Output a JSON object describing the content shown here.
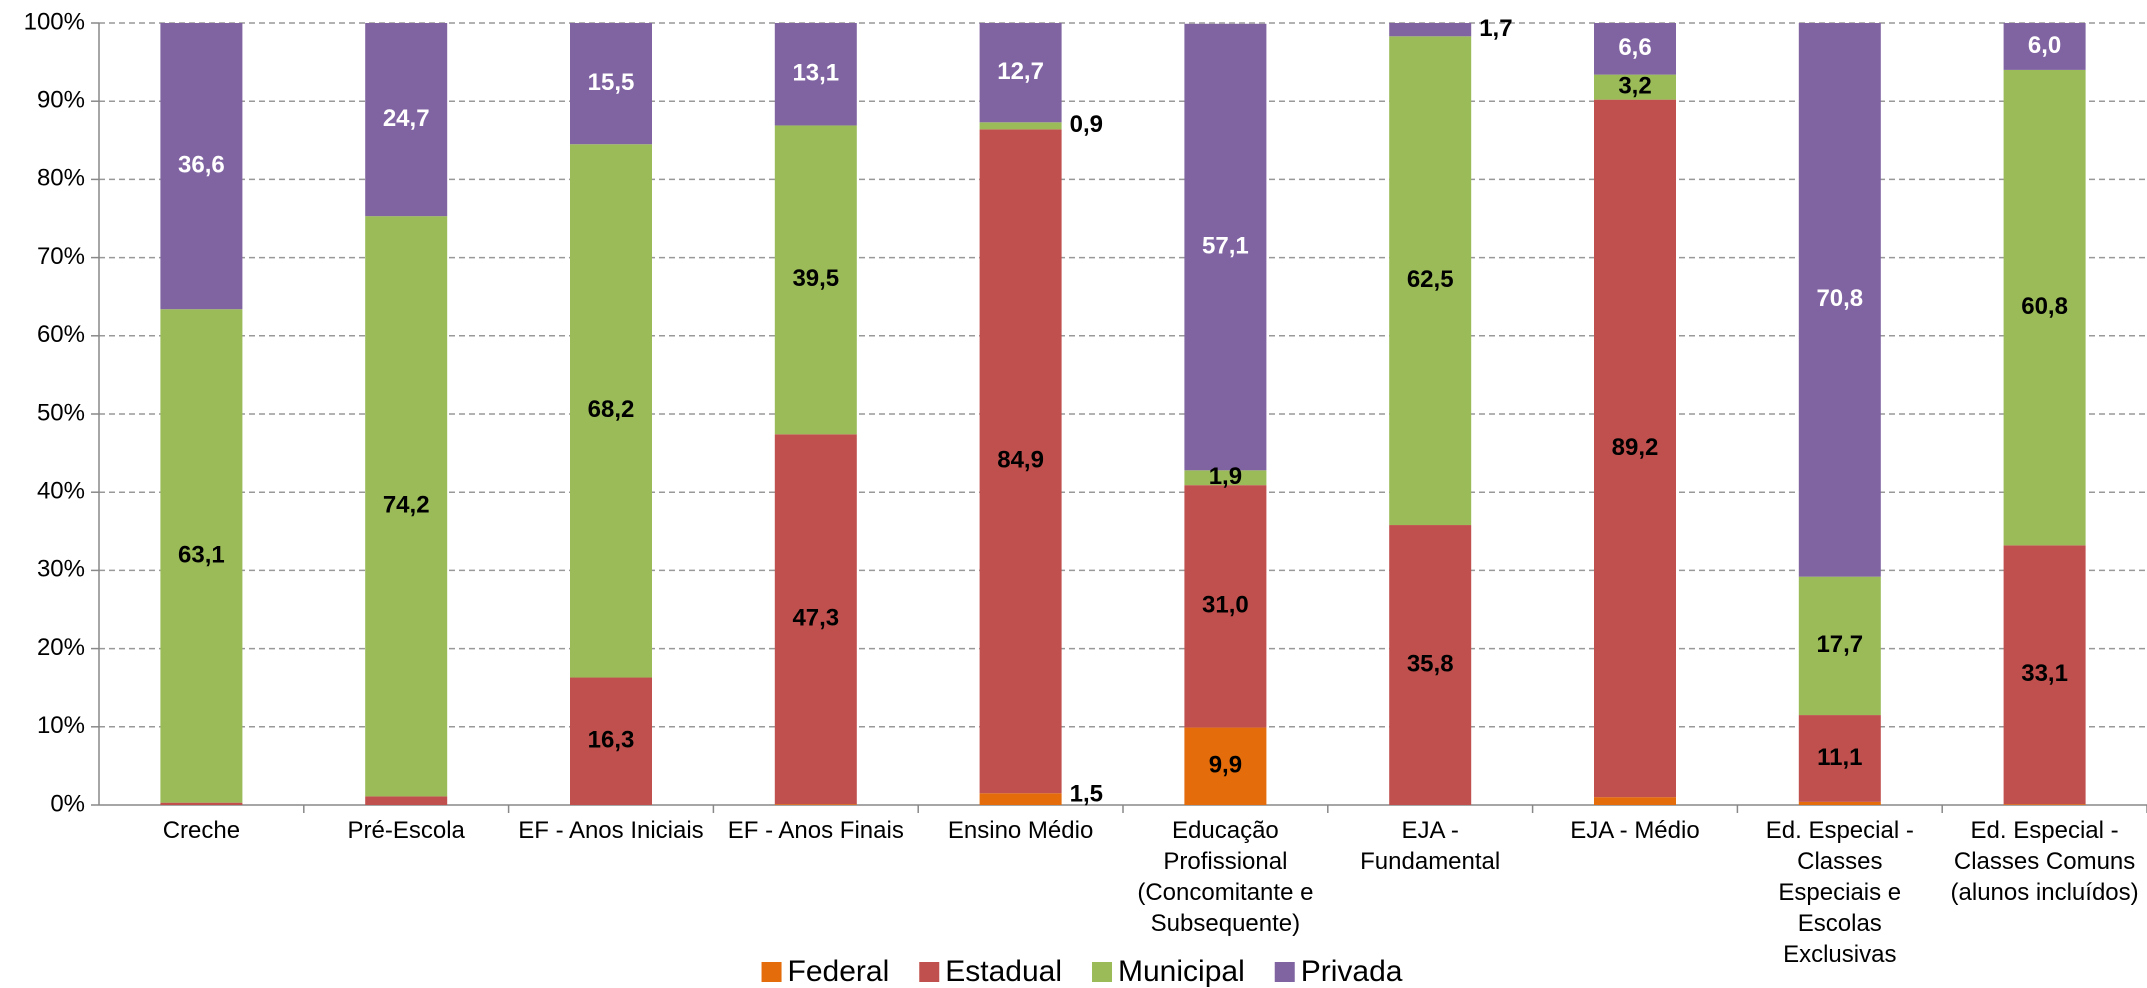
{
  "chart_data": {
    "type": "stacked_bar",
    "categories": [
      "Creche",
      "Pré-Escola",
      "EF - Anos Iniciais",
      "EF - Anos Finais",
      "Ensino Médio",
      "Educação Profissional (Concomitante e Subsequente)",
      "EJA - Fundamental",
      "EJA - Médio",
      "Ed. Especial - Classes Especiais e Escolas Exclusivas",
      "Ed. Especial - Classes Comuns (alunos incluídos)"
    ],
    "series": [
      {
        "name": "Federal",
        "color": "#e46c0a",
        "values": [
          0,
          0,
          0,
          0.1,
          1.5,
          9.9,
          0,
          1.0,
          0.4,
          0.1
        ],
        "value_labels": [
          null,
          null,
          null,
          null,
          "1,5",
          "9,9",
          null,
          null,
          null,
          null
        ]
      },
      {
        "name": "Estadual",
        "color": "#c0504d",
        "values": [
          0.3,
          1.1,
          16.3,
          47.3,
          84.9,
          31.0,
          35.8,
          89.2,
          11.1,
          33.1
        ],
        "value_labels": [
          null,
          null,
          "16,3",
          "47,3",
          "84,9",
          "31,0",
          "35,8",
          "89,2",
          "11,1",
          "33,1"
        ]
      },
      {
        "name": "Municipal",
        "color": "#9bbb59",
        "values": [
          63.1,
          74.2,
          68.2,
          39.5,
          0.9,
          1.9,
          62.5,
          3.2,
          17.7,
          60.8
        ],
        "value_labels": [
          "63,1",
          "74,2",
          "68,2",
          "39,5",
          "0,9",
          "1,9",
          "62,5",
          "3,2",
          "17,7",
          "60,8"
        ]
      },
      {
        "name": "Privada",
        "color": "#8064a2",
        "values": [
          36.6,
          24.7,
          15.5,
          13.1,
          12.7,
          57.1,
          1.7,
          6.6,
          70.8,
          6.0
        ],
        "value_labels": [
          "36,6",
          "24,7",
          "15,5",
          "13,1",
          "12,7",
          "57,1",
          "1,7",
          "6,6",
          "70,8",
          "6,0"
        ]
      }
    ],
    "ylim": [
      0,
      100
    ],
    "yticks": [
      {
        "value": 0,
        "label": "0%"
      },
      {
        "value": 10,
        "label": "10%"
      },
      {
        "value": 20,
        "label": "20%"
      },
      {
        "value": 30,
        "label": "30%"
      },
      {
        "value": 40,
        "label": "40%"
      },
      {
        "value": 50,
        "label": "50%"
      },
      {
        "value": 60,
        "label": "60%"
      },
      {
        "value": 70,
        "label": "70%"
      },
      {
        "value": 80,
        "label": "80%"
      },
      {
        "value": 90,
        "label": "90%"
      },
      {
        "value": 100,
        "label": "100%"
      }
    ],
    "grid": true,
    "legend": "bottom"
  }
}
